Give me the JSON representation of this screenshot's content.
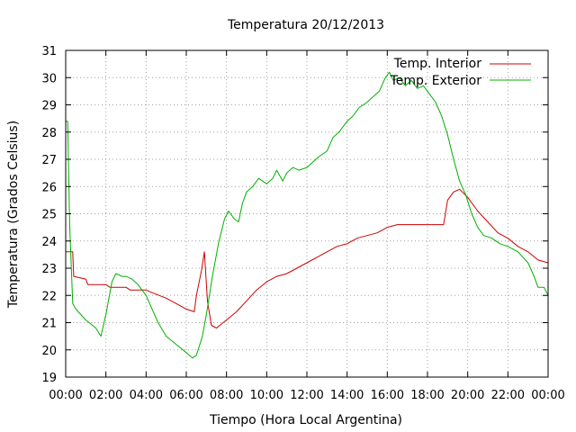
{
  "chart_data": {
    "type": "line",
    "title": "Temperatura 20/12/2013",
    "xlabel": "Tiempo (Hora Local Argentina)",
    "ylabel": "Temperatura (Grados Celsius)",
    "xlim": [
      0,
      24
    ],
    "ylim": [
      19,
      31
    ],
    "x_unit": "hours",
    "x_ticks": [
      "00:00",
      "02:00",
      "04:00",
      "06:00",
      "08:00",
      "10:00",
      "12:00",
      "14:00",
      "16:00",
      "18:00",
      "20:00",
      "22:00",
      "00:00"
    ],
    "y_ticks": [
      "19",
      "20",
      "21",
      "22",
      "23",
      "24",
      "25",
      "26",
      "27",
      "28",
      "29",
      "30",
      "31"
    ],
    "grid": true,
    "legend_position": "top-right",
    "series": [
      {
        "name": "Temp. Interior",
        "color": "#cc0000",
        "points": [
          [
            0.0,
            23.6
          ],
          [
            0.35,
            23.6
          ],
          [
            0.4,
            22.7
          ],
          [
            1.0,
            22.6
          ],
          [
            1.1,
            22.4
          ],
          [
            2.0,
            22.4
          ],
          [
            2.2,
            22.3
          ],
          [
            3.0,
            22.3
          ],
          [
            3.2,
            22.2
          ],
          [
            4.0,
            22.2
          ],
          [
            4.3,
            22.1
          ],
          [
            5.0,
            21.9
          ],
          [
            5.5,
            21.7
          ],
          [
            6.0,
            21.5
          ],
          [
            6.4,
            21.4
          ],
          [
            6.5,
            22.0
          ],
          [
            6.75,
            22.9
          ],
          [
            6.9,
            23.6
          ],
          [
            7.05,
            21.8
          ],
          [
            7.25,
            20.9
          ],
          [
            7.5,
            20.8
          ],
          [
            8.0,
            21.1
          ],
          [
            8.5,
            21.4
          ],
          [
            9.0,
            21.8
          ],
          [
            9.5,
            22.2
          ],
          [
            10.0,
            22.5
          ],
          [
            10.5,
            22.7
          ],
          [
            11.0,
            22.8
          ],
          [
            11.5,
            23.0
          ],
          [
            12.0,
            23.2
          ],
          [
            12.5,
            23.4
          ],
          [
            13.0,
            23.6
          ],
          [
            13.5,
            23.8
          ],
          [
            14.0,
            23.9
          ],
          [
            14.5,
            24.1
          ],
          [
            15.0,
            24.2
          ],
          [
            15.5,
            24.3
          ],
          [
            16.0,
            24.5
          ],
          [
            16.5,
            24.6
          ],
          [
            17.0,
            24.6
          ],
          [
            17.5,
            24.6
          ],
          [
            18.0,
            24.6
          ],
          [
            18.5,
            24.6
          ],
          [
            18.8,
            24.6
          ],
          [
            19.0,
            25.5
          ],
          [
            19.3,
            25.8
          ],
          [
            19.6,
            25.9
          ],
          [
            20.0,
            25.6
          ],
          [
            20.5,
            25.1
          ],
          [
            21.0,
            24.7
          ],
          [
            21.5,
            24.3
          ],
          [
            22.0,
            24.1
          ],
          [
            22.5,
            23.8
          ],
          [
            23.0,
            23.6
          ],
          [
            23.5,
            23.3
          ],
          [
            24.0,
            23.2
          ]
        ]
      },
      {
        "name": "Temp. Exterior",
        "color": "#00b000",
        "points": [
          [
            0.0,
            28.4
          ],
          [
            0.1,
            28.4
          ],
          [
            0.2,
            24.5
          ],
          [
            0.35,
            21.7
          ],
          [
            0.5,
            21.5
          ],
          [
            1.0,
            21.1
          ],
          [
            1.5,
            20.8
          ],
          [
            1.75,
            20.5
          ],
          [
            2.0,
            21.3
          ],
          [
            2.3,
            22.5
          ],
          [
            2.5,
            22.8
          ],
          [
            2.8,
            22.7
          ],
          [
            3.0,
            22.7
          ],
          [
            3.3,
            22.6
          ],
          [
            3.6,
            22.4
          ],
          [
            4.0,
            22.0
          ],
          [
            4.3,
            21.5
          ],
          [
            4.6,
            21.0
          ],
          [
            5.0,
            20.5
          ],
          [
            5.5,
            20.2
          ],
          [
            6.0,
            19.9
          ],
          [
            6.3,
            19.7
          ],
          [
            6.5,
            19.8
          ],
          [
            6.8,
            20.5
          ],
          [
            7.0,
            21.3
          ],
          [
            7.3,
            22.7
          ],
          [
            7.6,
            23.9
          ],
          [
            7.9,
            24.8
          ],
          [
            8.1,
            25.1
          ],
          [
            8.4,
            24.8
          ],
          [
            8.6,
            24.7
          ],
          [
            8.8,
            25.4
          ],
          [
            9.0,
            25.8
          ],
          [
            9.3,
            26.0
          ],
          [
            9.6,
            26.3
          ],
          [
            10.0,
            26.1
          ],
          [
            10.3,
            26.3
          ],
          [
            10.5,
            26.6
          ],
          [
            10.8,
            26.2
          ],
          [
            11.0,
            26.5
          ],
          [
            11.3,
            26.7
          ],
          [
            11.6,
            26.6
          ],
          [
            12.0,
            26.7
          ],
          [
            12.3,
            26.9
          ],
          [
            12.6,
            27.1
          ],
          [
            13.0,
            27.3
          ],
          [
            13.3,
            27.8
          ],
          [
            13.6,
            28.0
          ],
          [
            14.0,
            28.4
          ],
          [
            14.3,
            28.6
          ],
          [
            14.6,
            28.9
          ],
          [
            15.0,
            29.1
          ],
          [
            15.3,
            29.3
          ],
          [
            15.6,
            29.5
          ],
          [
            15.9,
            30.0
          ],
          [
            16.1,
            30.2
          ],
          [
            16.3,
            29.9
          ],
          [
            16.6,
            30.0
          ],
          [
            16.9,
            29.7
          ],
          [
            17.2,
            29.9
          ],
          [
            17.5,
            29.6
          ],
          [
            17.8,
            29.7
          ],
          [
            18.1,
            29.4
          ],
          [
            18.4,
            29.1
          ],
          [
            18.7,
            28.6
          ],
          [
            19.0,
            27.9
          ],
          [
            19.3,
            27.0
          ],
          [
            19.6,
            26.2
          ],
          [
            19.9,
            25.7
          ],
          [
            20.2,
            25.0
          ],
          [
            20.5,
            24.5
          ],
          [
            20.8,
            24.2
          ],
          [
            21.2,
            24.1
          ],
          [
            21.6,
            23.9
          ],
          [
            22.0,
            23.8
          ],
          [
            22.5,
            23.6
          ],
          [
            23.0,
            23.2
          ],
          [
            23.3,
            22.7
          ],
          [
            23.5,
            22.3
          ],
          [
            23.8,
            22.3
          ],
          [
            24.0,
            22.0
          ]
        ]
      }
    ]
  }
}
